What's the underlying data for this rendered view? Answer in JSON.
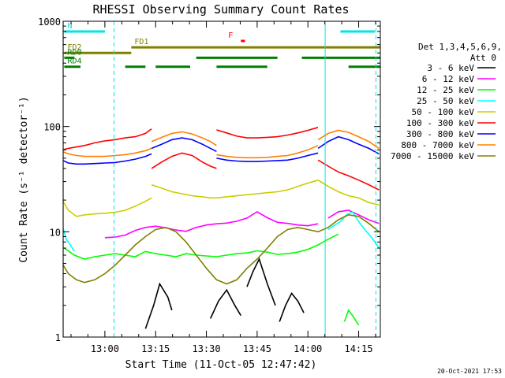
{
  "chart_data": {
    "type": "line",
    "title": "RHESSI Observing Summary Count Rates",
    "xlabel": "Start Time (11-Oct-05 12:47:42)",
    "ylabel": "Count Rate (s⁻¹ detector⁻¹)",
    "ylog": true,
    "xlim": [
      12.7944,
      14.3567
    ],
    "ylim": [
      1,
      1000
    ],
    "x_ticks": [
      {
        "x": 13.0,
        "label": "13:00"
      },
      {
        "x": 13.25,
        "label": "13:15"
      },
      {
        "x": 13.5,
        "label": "13:30"
      },
      {
        "x": 13.75,
        "label": "13:45"
      },
      {
        "x": 14.0,
        "label": "14:00"
      },
      {
        "x": 14.25,
        "label": "14:15"
      }
    ],
    "y_ticks": [
      {
        "y": 1,
        "label": "1"
      },
      {
        "y": 10,
        "label": "10"
      },
      {
        "y": 100,
        "label": "100"
      },
      {
        "y": 1000,
        "label": "1000"
      }
    ],
    "legend_header": [
      "Det 1,3,4,5,6,9,",
      "Att 0"
    ],
    "legend_placement": "right",
    "timestamp": "20-Oct-2021 17:53",
    "series": [
      {
        "name": "3 - 6 keV",
        "color": "#000000",
        "segments": [
          {
            "x": [
              13.2,
              13.24,
              13.27,
              13.31,
              13.33
            ],
            "y": [
              1.2,
              2.0,
              3.2,
              2.4,
              1.8
            ]
          },
          {
            "x": [
              13.52,
              13.56,
              13.6,
              13.64,
              13.67
            ],
            "y": [
              1.5,
              2.2,
              2.8,
              2.0,
              1.6
            ]
          },
          {
            "x": [
              13.7,
              13.73,
              13.76,
              13.8,
              13.84
            ],
            "y": [
              3.0,
              4.2,
              5.5,
              3.2,
              2.0
            ]
          },
          {
            "x": [
              13.86,
              13.89,
              13.92,
              13.95,
              13.98
            ],
            "y": [
              1.4,
              2.0,
              2.6,
              2.2,
              1.7
            ]
          }
        ]
      },
      {
        "name": "6 - 12 keV",
        "color": "#ff00ff",
        "segments": [
          {
            "x": [
              13.0,
              13.05,
              13.1,
              13.15,
              13.2,
              13.25,
              13.3,
              13.35,
              13.4,
              13.45,
              13.5,
              13.55,
              13.6,
              13.65,
              13.7,
              13.75,
              13.8,
              13.85,
              13.9,
              13.95,
              14.0,
              14.05
            ],
            "y": [
              8.8,
              8.9,
              9.3,
              10.3,
              11.0,
              11.3,
              10.9,
              10.4,
              10.1,
              11.0,
              11.6,
              11.9,
              12.1,
              12.6,
              13.5,
              15.5,
              13.6,
              12.3,
              12.0,
              11.6,
              11.4,
              11.9
            ]
          },
          {
            "x": [
              14.1,
              14.15,
              14.2,
              14.25,
              14.3,
              14.35
            ],
            "y": [
              13.5,
              15.5,
              16.0,
              14.5,
              13.0,
              12.0
            ]
          }
        ]
      },
      {
        "name": "12 - 25 keV",
        "color": "#00ff00",
        "segments": [
          {
            "x": [
              12.8,
              12.85,
              12.9,
              12.95,
              13.0,
              13.05,
              13.1,
              13.15,
              13.2,
              13.25,
              13.3,
              13.35,
              13.4,
              13.45,
              13.5,
              13.55,
              13.6,
              13.65,
              13.7,
              13.75,
              13.8,
              13.85,
              13.9,
              13.95,
              14.0,
              14.05,
              14.1,
              14.15
            ],
            "y": [
              7.0,
              6.0,
              5.5,
              5.8,
              6.0,
              6.2,
              6.0,
              5.8,
              6.5,
              6.2,
              6.0,
              5.8,
              6.2,
              6.0,
              5.9,
              5.8,
              6.0,
              6.2,
              6.3,
              6.6,
              6.4,
              6.1,
              6.2,
              6.4,
              6.8,
              7.5,
              8.5,
              9.5
            ]
          },
          {
            "x": [
              14.18,
              14.2,
              14.22,
              14.25
            ],
            "y": [
              1.4,
              1.8,
              1.6,
              1.3
            ]
          }
        ]
      },
      {
        "name": "25 - 50 keV",
        "color": "#00ffff",
        "segments": [
          {
            "x": [
              12.79,
              12.81,
              12.83,
              12.85
            ],
            "y": [
              11.5,
              8.5,
              7.5,
              6.5
            ]
          },
          {
            "x": [
              14.1,
              14.13,
              14.16,
              14.19,
              14.22,
              14.25,
              14.28,
              14.31,
              14.33,
              14.35
            ],
            "y": [
              10.5,
              11.5,
              12.5,
              14.5,
              15.5,
              12.5,
              10.5,
              9.0,
              8.0,
              7.0
            ]
          }
        ]
      },
      {
        "name": "50 - 100 keV",
        "color": "#cccc00",
        "segments": [
          {
            "x": [
              12.79,
              12.82,
              12.86,
              12.9,
              12.95,
              13.0,
              13.05,
              13.1,
              13.15,
              13.2,
              13.23
            ],
            "y": [
              20,
              16,
              14,
              14.5,
              14.8,
              15.0,
              15.3,
              16.0,
              17.5,
              19.5,
              21
            ]
          },
          {
            "x": [
              13.23,
              13.28,
              13.33,
              13.38,
              13.43,
              13.48,
              13.52,
              13.55
            ],
            "y": [
              28,
              26,
              24,
              23,
              22,
              21.5,
              21,
              21
            ]
          },
          {
            "x": [
              13.55,
              13.6,
              13.65,
              13.7,
              13.75,
              13.8,
              13.85,
              13.9,
              13.95,
              14.0,
              14.05
            ],
            "y": [
              21,
              21.5,
              22,
              22.5,
              23,
              23.5,
              24,
              25,
              27,
              29,
              31
            ]
          },
          {
            "x": [
              14.05,
              14.1,
              14.15,
              14.2,
              14.25,
              14.3,
              14.35
            ],
            "y": [
              31,
              27,
              24,
              22,
              21,
              19,
              18
            ]
          }
        ]
      },
      {
        "name": "100 - 300 keV",
        "color": "#ff0000",
        "segments": [
          {
            "x": [
              12.79,
              12.82,
              12.86,
              12.9,
              12.95,
              13.0,
              13.05,
              13.1,
              13.15,
              13.2,
              13.23
            ],
            "y": [
              60,
              62,
              64,
              66,
              70,
              73,
              75,
              78,
              80,
              86,
              95
            ]
          },
          {
            "x": [
              13.23,
              13.28,
              13.33,
              13.38,
              13.43,
              13.48,
              13.52,
              13.55
            ],
            "y": [
              40,
              46,
              52,
              56,
              53,
              46,
              42,
              40
            ]
          },
          {
            "x": [
              13.55,
              13.6,
              13.65,
              13.7,
              13.75,
              13.8,
              13.85,
              13.9,
              13.95,
              14.0,
              14.05
            ],
            "y": [
              93,
              87,
              81,
              78,
              78,
              79,
              80,
              83,
              87,
              92,
              98
            ]
          },
          {
            "x": [
              14.05,
              14.1,
              14.15,
              14.2,
              14.25,
              14.3,
              14.35
            ],
            "y": [
              48,
              42,
              37,
              34,
              31,
              28,
              25
            ]
          }
        ]
      },
      {
        "name": "300 - 800 keV",
        "color": "#0000ff",
        "segments": [
          {
            "x": [
              12.79,
              12.82,
              12.86,
              12.9,
              12.95,
              13.0,
              13.05,
              13.1,
              13.15,
              13.2,
              13.23
            ],
            "y": [
              48,
              45,
              44,
              44,
              44.5,
              45,
              45.5,
              47,
              49,
              52,
              55
            ]
          },
          {
            "x": [
              13.23,
              13.28,
              13.33,
              13.38,
              13.43,
              13.48,
              13.52,
              13.55
            ],
            "y": [
              62,
              68,
              75,
              78,
              75,
              68,
              62,
              58
            ]
          },
          {
            "x": [
              13.55,
              13.6,
              13.65,
              13.7,
              13.75,
              13.8,
              13.85,
              13.9,
              13.95,
              14.0,
              14.05
            ],
            "y": [
              50,
              48,
              47,
              46.5,
              46.5,
              47,
              47.5,
              48,
              50,
              53,
              56
            ]
          },
          {
            "x": [
              14.05,
              14.1,
              14.15,
              14.2,
              14.25,
              14.3,
              14.35
            ],
            "y": [
              62,
              72,
              80,
              75,
              68,
              62,
              55
            ]
          }
        ]
      },
      {
        "name": "800 - 7000 keV",
        "color": "#ff8000",
        "segments": [
          {
            "x": [
              12.79,
              12.82,
              12.86,
              12.9,
              12.95,
              13.0,
              13.05,
              13.1,
              13.15,
              13.2,
              13.23
            ],
            "y": [
              58,
              55,
              53,
              52,
              52,
              52,
              53,
              54,
              56,
              59,
              62
            ]
          },
          {
            "x": [
              13.23,
              13.28,
              13.33,
              13.38,
              13.43,
              13.48,
              13.52,
              13.55
            ],
            "y": [
              72,
              79,
              86,
              89,
              85,
              78,
              72,
              66
            ]
          },
          {
            "x": [
              13.55,
              13.6,
              13.65,
              13.7,
              13.75,
              13.8,
              13.85,
              13.9,
              13.95,
              14.0,
              14.05
            ],
            "y": [
              54,
              52,
              51,
              50.5,
              50.5,
              51,
              52,
              53,
              56,
              60,
              66
            ]
          },
          {
            "x": [
              14.05,
              14.1,
              14.15,
              14.2,
              14.25,
              14.3,
              14.35
            ],
            "y": [
              75,
              86,
              92,
              88,
              80,
              72,
              62
            ]
          }
        ]
      },
      {
        "name": "7000 - 15000 keV",
        "color": "#808000",
        "segments": [
          {
            "x": [
              12.79,
              12.82,
              12.86,
              12.9,
              12.95,
              13.0,
              13.05,
              13.1,
              13.15,
              13.2,
              13.25,
              13.3,
              13.35,
              13.4,
              13.45,
              13.5,
              13.55,
              13.6,
              13.65,
              13.7,
              13.75,
              13.8,
              13.85,
              13.9,
              13.95,
              14.0,
              14.05,
              14.1,
              14.15,
              14.2,
              14.25,
              14.3,
              14.35
            ],
            "y": [
              5.0,
              4.0,
              3.5,
              3.3,
              3.5,
              4.0,
              4.8,
              6.0,
              7.5,
              9.0,
              10.5,
              11.0,
              10.0,
              8.0,
              6.0,
              4.5,
              3.5,
              3.2,
              3.5,
              4.5,
              5.5,
              7.0,
              9.0,
              10.5,
              11.0,
              10.5,
              10.0,
              11.0,
              13.0,
              14.5,
              14.0,
              12.0,
              10.0
            ]
          }
        ]
      }
    ],
    "state_bars": [
      {
        "label": "N",
        "color": "#00e5e5",
        "y": 800,
        "segments": [
          [
            12.8,
            13.0
          ],
          [
            14.16,
            14.33
          ]
        ]
      },
      {
        "label": "F",
        "color": "#ff0000",
        "y": 650,
        "segments": [
          [
            13.67,
            13.69
          ]
        ]
      },
      {
        "label": "FD1",
        "color": "#808000",
        "y": 565,
        "segments": [
          [
            13.13,
            14.36
          ]
        ]
      },
      {
        "label": "FD2",
        "color": "#808000",
        "y": 500,
        "segments": [
          [
            12.8,
            13.13
          ]
        ]
      },
      {
        "label": "RD0",
        "color": "#008000",
        "y": 450,
        "segments": [
          [
            12.8,
            12.85
          ],
          [
            13.45,
            13.85
          ],
          [
            13.97,
            14.36
          ]
        ]
      },
      {
        "label": "RD4",
        "color": "#008000",
        "y": 370,
        "segments": [
          [
            12.8,
            12.88
          ],
          [
            13.1,
            13.2
          ],
          [
            13.25,
            13.42
          ],
          [
            13.55,
            13.8
          ],
          [
            14.2,
            14.36
          ]
        ]
      }
    ],
    "verticals": [
      {
        "x": 12.795,
        "style": "solid",
        "color": "#00e5e5"
      },
      {
        "x": 13.045,
        "style": "dashed",
        "color": "#00e5e5"
      },
      {
        "x": 14.085,
        "style": "solid",
        "color": "#00e5e5"
      },
      {
        "x": 14.335,
        "style": "dashed",
        "color": "#00e5e5"
      }
    ]
  }
}
